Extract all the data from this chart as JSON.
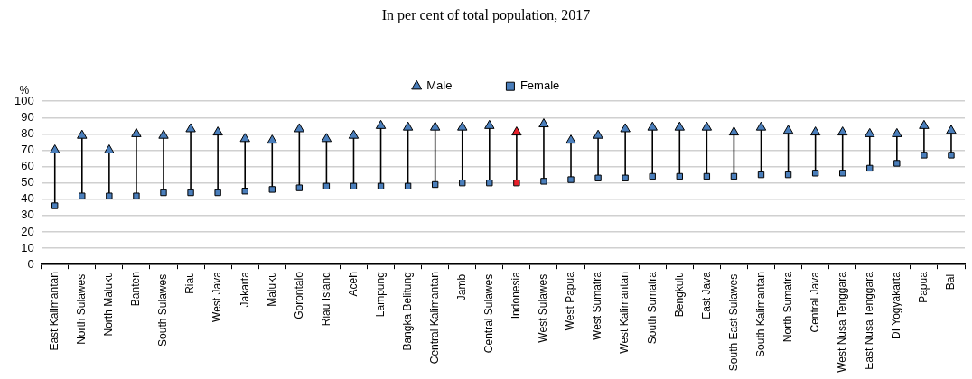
{
  "chart_data": {
    "type": "scatter",
    "title": "In per cent of total population, 2017",
    "ylabel": "%",
    "categories": [
      "East Kalimantan",
      "North Sulawesi",
      "North Maluku",
      "Banten",
      "South Sulawesi",
      "Riau",
      "West Java",
      "Jakarta",
      "Maluku",
      "Gorontalo",
      "Riau Island",
      "Aceh",
      "Lampung",
      "Bangka Belitung",
      "Central Kalimantan",
      "Jambi",
      "Central Sulawesi",
      "Indonesia",
      "West Sulawesi",
      "West Papua",
      "West Sumatra",
      "West Kalimantan",
      "South Sumatra",
      "Bengkulu",
      "East Java",
      "South East Sulawesi",
      "South Kalimantan",
      "North Sumatra",
      "Central Java",
      "West Nusa Tenggara",
      "East Nusa Tenggara",
      "DI Yogyakarta",
      "Papua",
      "Bali"
    ],
    "series": [
      {
        "name": "Male",
        "marker": "triangle",
        "colors": [
          "#4a7ebb",
          "#4a7ebb",
          "#4a7ebb",
          "#4a7ebb",
          "#4a7ebb",
          "#4a7ebb",
          "#4a7ebb",
          "#4a7ebb",
          "#4a7ebb",
          "#4a7ebb",
          "#4a7ebb",
          "#4a7ebb",
          "#4a7ebb",
          "#4a7ebb",
          "#4a7ebb",
          "#4a7ebb",
          "#4a7ebb",
          "#e8202a",
          "#4a7ebb",
          "#4a7ebb",
          "#4a7ebb",
          "#4a7ebb",
          "#4a7ebb",
          "#4a7ebb",
          "#4a7ebb",
          "#4a7ebb",
          "#4a7ebb",
          "#4a7ebb",
          "#4a7ebb",
          "#4a7ebb",
          "#4a7ebb",
          "#4a7ebb",
          "#4a7ebb",
          "#4a7ebb"
        ],
        "values": [
          70,
          79,
          70,
          80,
          79,
          83,
          81,
          77,
          76,
          83,
          77,
          79,
          85,
          84,
          84,
          84,
          85,
          81,
          86,
          76,
          79,
          83,
          84,
          84,
          84,
          81,
          84,
          82,
          81,
          81,
          80,
          80,
          85,
          82
        ]
      },
      {
        "name": "Female",
        "marker": "square",
        "colors": [
          "#4a7ebb",
          "#4a7ebb",
          "#4a7ebb",
          "#4a7ebb",
          "#4a7ebb",
          "#4a7ebb",
          "#4a7ebb",
          "#4a7ebb",
          "#4a7ebb",
          "#4a7ebb",
          "#4a7ebb",
          "#4a7ebb",
          "#4a7ebb",
          "#4a7ebb",
          "#4a7ebb",
          "#4a7ebb",
          "#4a7ebb",
          "#e8202a",
          "#4a7ebb",
          "#4a7ebb",
          "#4a7ebb",
          "#4a7ebb",
          "#4a7ebb",
          "#4a7ebb",
          "#4a7ebb",
          "#4a7ebb",
          "#4a7ebb",
          "#4a7ebb",
          "#4a7ebb",
          "#4a7ebb",
          "#4a7ebb",
          "#4a7ebb",
          "#4a7ebb",
          "#4a7ebb"
        ],
        "values": [
          36,
          42,
          42,
          42,
          44,
          44,
          44,
          45,
          46,
          47,
          48,
          48,
          48,
          48,
          49,
          50,
          50,
          50,
          51,
          52,
          53,
          53,
          54,
          54,
          54,
          54,
          55,
          55,
          56,
          56,
          59,
          62,
          67,
          67
        ]
      }
    ],
    "ylim": [
      0,
      100
    ],
    "yticks": [
      0,
      10,
      20,
      30,
      40,
      50,
      60,
      70,
      80,
      90,
      100
    ],
    "grid": "y",
    "legend": "top"
  }
}
